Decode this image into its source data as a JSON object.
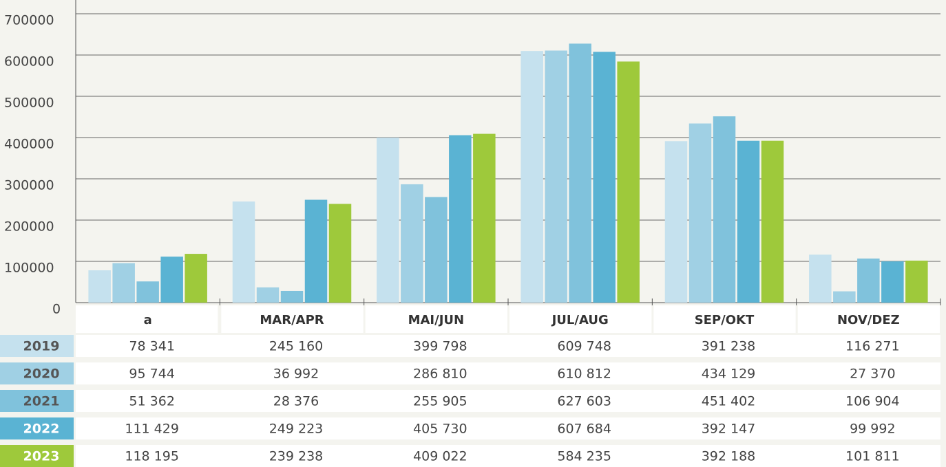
{
  "chart_data": {
    "type": "bar",
    "categories": [
      "a",
      "MAR/APR",
      "MAI/JUN",
      "JUL/AUG",
      "SEP/OKT",
      "NOV/DEZ"
    ],
    "series": [
      {
        "name": "2019",
        "color": "#c5e1ee",
        "values": [
          78341,
          245160,
          399798,
          609748,
          391238,
          116271
        ],
        "value_labels": [
          "78 341",
          "245 160",
          "399 798",
          "609 748",
          "391 238",
          "116 271"
        ]
      },
      {
        "name": "2020",
        "color": "#a0d0e4",
        "values": [
          95744,
          36992,
          286810,
          610812,
          434129,
          27370
        ],
        "value_labels": [
          "95 744",
          "36 992",
          "286 810",
          "610 812",
          "434 129",
          "27 370"
        ]
      },
      {
        "name": "2021",
        "color": "#80c2dc",
        "values": [
          51362,
          28376,
          255905,
          627603,
          451402,
          106904
        ],
        "value_labels": [
          "51 362",
          "28 376",
          "255 905",
          "627 603",
          "451 402",
          "106 904"
        ]
      },
      {
        "name": "2022",
        "color": "#5ab3d3",
        "values": [
          111429,
          249223,
          405730,
          607684,
          392147,
          99992
        ],
        "value_labels": [
          "111 429",
          "249 223",
          "405 730",
          "607 684",
          "392 147",
          "99 992"
        ]
      },
      {
        "name": "2023",
        "color": "#9ec93b",
        "values": [
          118195,
          239238,
          409022,
          584235,
          392188,
          101811
        ],
        "value_labels": [
          "118 195",
          "239 238",
          "409 022",
          "584 235",
          "392 188",
          "101 811"
        ]
      }
    ],
    "ylim": [
      0,
      700000
    ],
    "yticks": [
      0,
      100000,
      200000,
      300000,
      400000,
      500000,
      600000,
      700000
    ],
    "grid": true
  }
}
